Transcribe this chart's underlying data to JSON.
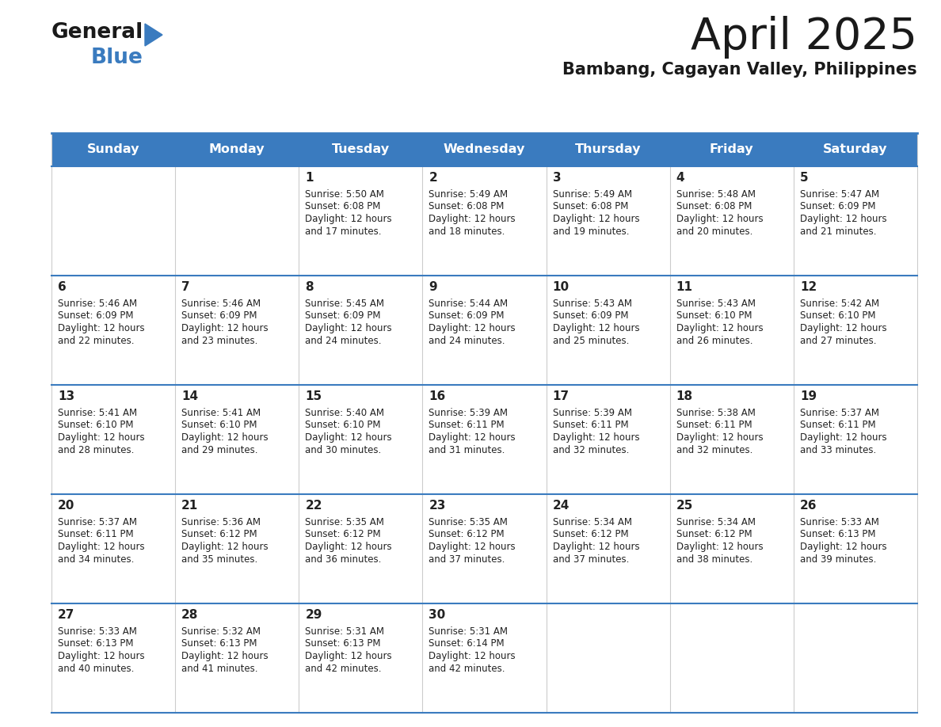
{
  "title": "April 2025",
  "subtitle": "Bambang, Cagayan Valley, Philippines",
  "header_color": "#3a7bbf",
  "header_text_color": "#ffffff",
  "border_color": "#3a7bbf",
  "title_color": "#1a1a1a",
  "text_color": "#222222",
  "days_of_week": [
    "Sunday",
    "Monday",
    "Tuesday",
    "Wednesday",
    "Thursday",
    "Friday",
    "Saturday"
  ],
  "calendar_data": [
    [
      {
        "day": "",
        "sunrise": "",
        "sunset": "",
        "daylight_min": -1
      },
      {
        "day": "",
        "sunrise": "",
        "sunset": "",
        "daylight_min": -1
      },
      {
        "day": "1",
        "sunrise": "5:50 AM",
        "sunset": "6:08 PM",
        "daylight_min": 17
      },
      {
        "day": "2",
        "sunrise": "5:49 AM",
        "sunset": "6:08 PM",
        "daylight_min": 18
      },
      {
        "day": "3",
        "sunrise": "5:49 AM",
        "sunset": "6:08 PM",
        "daylight_min": 19
      },
      {
        "day": "4",
        "sunrise": "5:48 AM",
        "sunset": "6:08 PM",
        "daylight_min": 20
      },
      {
        "day": "5",
        "sunrise": "5:47 AM",
        "sunset": "6:09 PM",
        "daylight_min": 21
      }
    ],
    [
      {
        "day": "6",
        "sunrise": "5:46 AM",
        "sunset": "6:09 PM",
        "daylight_min": 22
      },
      {
        "day": "7",
        "sunrise": "5:46 AM",
        "sunset": "6:09 PM",
        "daylight_min": 23
      },
      {
        "day": "8",
        "sunrise": "5:45 AM",
        "sunset": "6:09 PM",
        "daylight_min": 24
      },
      {
        "day": "9",
        "sunrise": "5:44 AM",
        "sunset": "6:09 PM",
        "daylight_min": 24
      },
      {
        "day": "10",
        "sunrise": "5:43 AM",
        "sunset": "6:09 PM",
        "daylight_min": 25
      },
      {
        "day": "11",
        "sunrise": "5:43 AM",
        "sunset": "6:10 PM",
        "daylight_min": 26
      },
      {
        "day": "12",
        "sunrise": "5:42 AM",
        "sunset": "6:10 PM",
        "daylight_min": 27
      }
    ],
    [
      {
        "day": "13",
        "sunrise": "5:41 AM",
        "sunset": "6:10 PM",
        "daylight_min": 28
      },
      {
        "day": "14",
        "sunrise": "5:41 AM",
        "sunset": "6:10 PM",
        "daylight_min": 29
      },
      {
        "day": "15",
        "sunrise": "5:40 AM",
        "sunset": "6:10 PM",
        "daylight_min": 30
      },
      {
        "day": "16",
        "sunrise": "5:39 AM",
        "sunset": "6:11 PM",
        "daylight_min": 31
      },
      {
        "day": "17",
        "sunrise": "5:39 AM",
        "sunset": "6:11 PM",
        "daylight_min": 32
      },
      {
        "day": "18",
        "sunrise": "5:38 AM",
        "sunset": "6:11 PM",
        "daylight_min": 32
      },
      {
        "day": "19",
        "sunrise": "5:37 AM",
        "sunset": "6:11 PM",
        "daylight_min": 33
      }
    ],
    [
      {
        "day": "20",
        "sunrise": "5:37 AM",
        "sunset": "6:11 PM",
        "daylight_min": 34
      },
      {
        "day": "21",
        "sunrise": "5:36 AM",
        "sunset": "6:12 PM",
        "daylight_min": 35
      },
      {
        "day": "22",
        "sunrise": "5:35 AM",
        "sunset": "6:12 PM",
        "daylight_min": 36
      },
      {
        "day": "23",
        "sunrise": "5:35 AM",
        "sunset": "6:12 PM",
        "daylight_min": 37
      },
      {
        "day": "24",
        "sunrise": "5:34 AM",
        "sunset": "6:12 PM",
        "daylight_min": 37
      },
      {
        "day": "25",
        "sunrise": "5:34 AM",
        "sunset": "6:12 PM",
        "daylight_min": 38
      },
      {
        "day": "26",
        "sunrise": "5:33 AM",
        "sunset": "6:13 PM",
        "daylight_min": 39
      }
    ],
    [
      {
        "day": "27",
        "sunrise": "5:33 AM",
        "sunset": "6:13 PM",
        "daylight_min": 40
      },
      {
        "day": "28",
        "sunrise": "5:32 AM",
        "sunset": "6:13 PM",
        "daylight_min": 41
      },
      {
        "day": "29",
        "sunrise": "5:31 AM",
        "sunset": "6:13 PM",
        "daylight_min": 42
      },
      {
        "day": "30",
        "sunrise": "5:31 AM",
        "sunset": "6:14 PM",
        "daylight_min": 42
      },
      {
        "day": "",
        "sunrise": "",
        "sunset": "",
        "daylight_min": -1
      },
      {
        "day": "",
        "sunrise": "",
        "sunset": "",
        "daylight_min": -1
      },
      {
        "day": "",
        "sunrise": "",
        "sunset": "",
        "daylight_min": -1
      }
    ]
  ],
  "logo_text_general": "General",
  "logo_text_blue": "Blue",
  "logo_color_general": "#1a1a1a",
  "logo_color_blue": "#3a7bbf",
  "logo_triangle_color": "#3a7bbf",
  "fig_width": 11.88,
  "fig_height": 9.18,
  "dpi": 100
}
